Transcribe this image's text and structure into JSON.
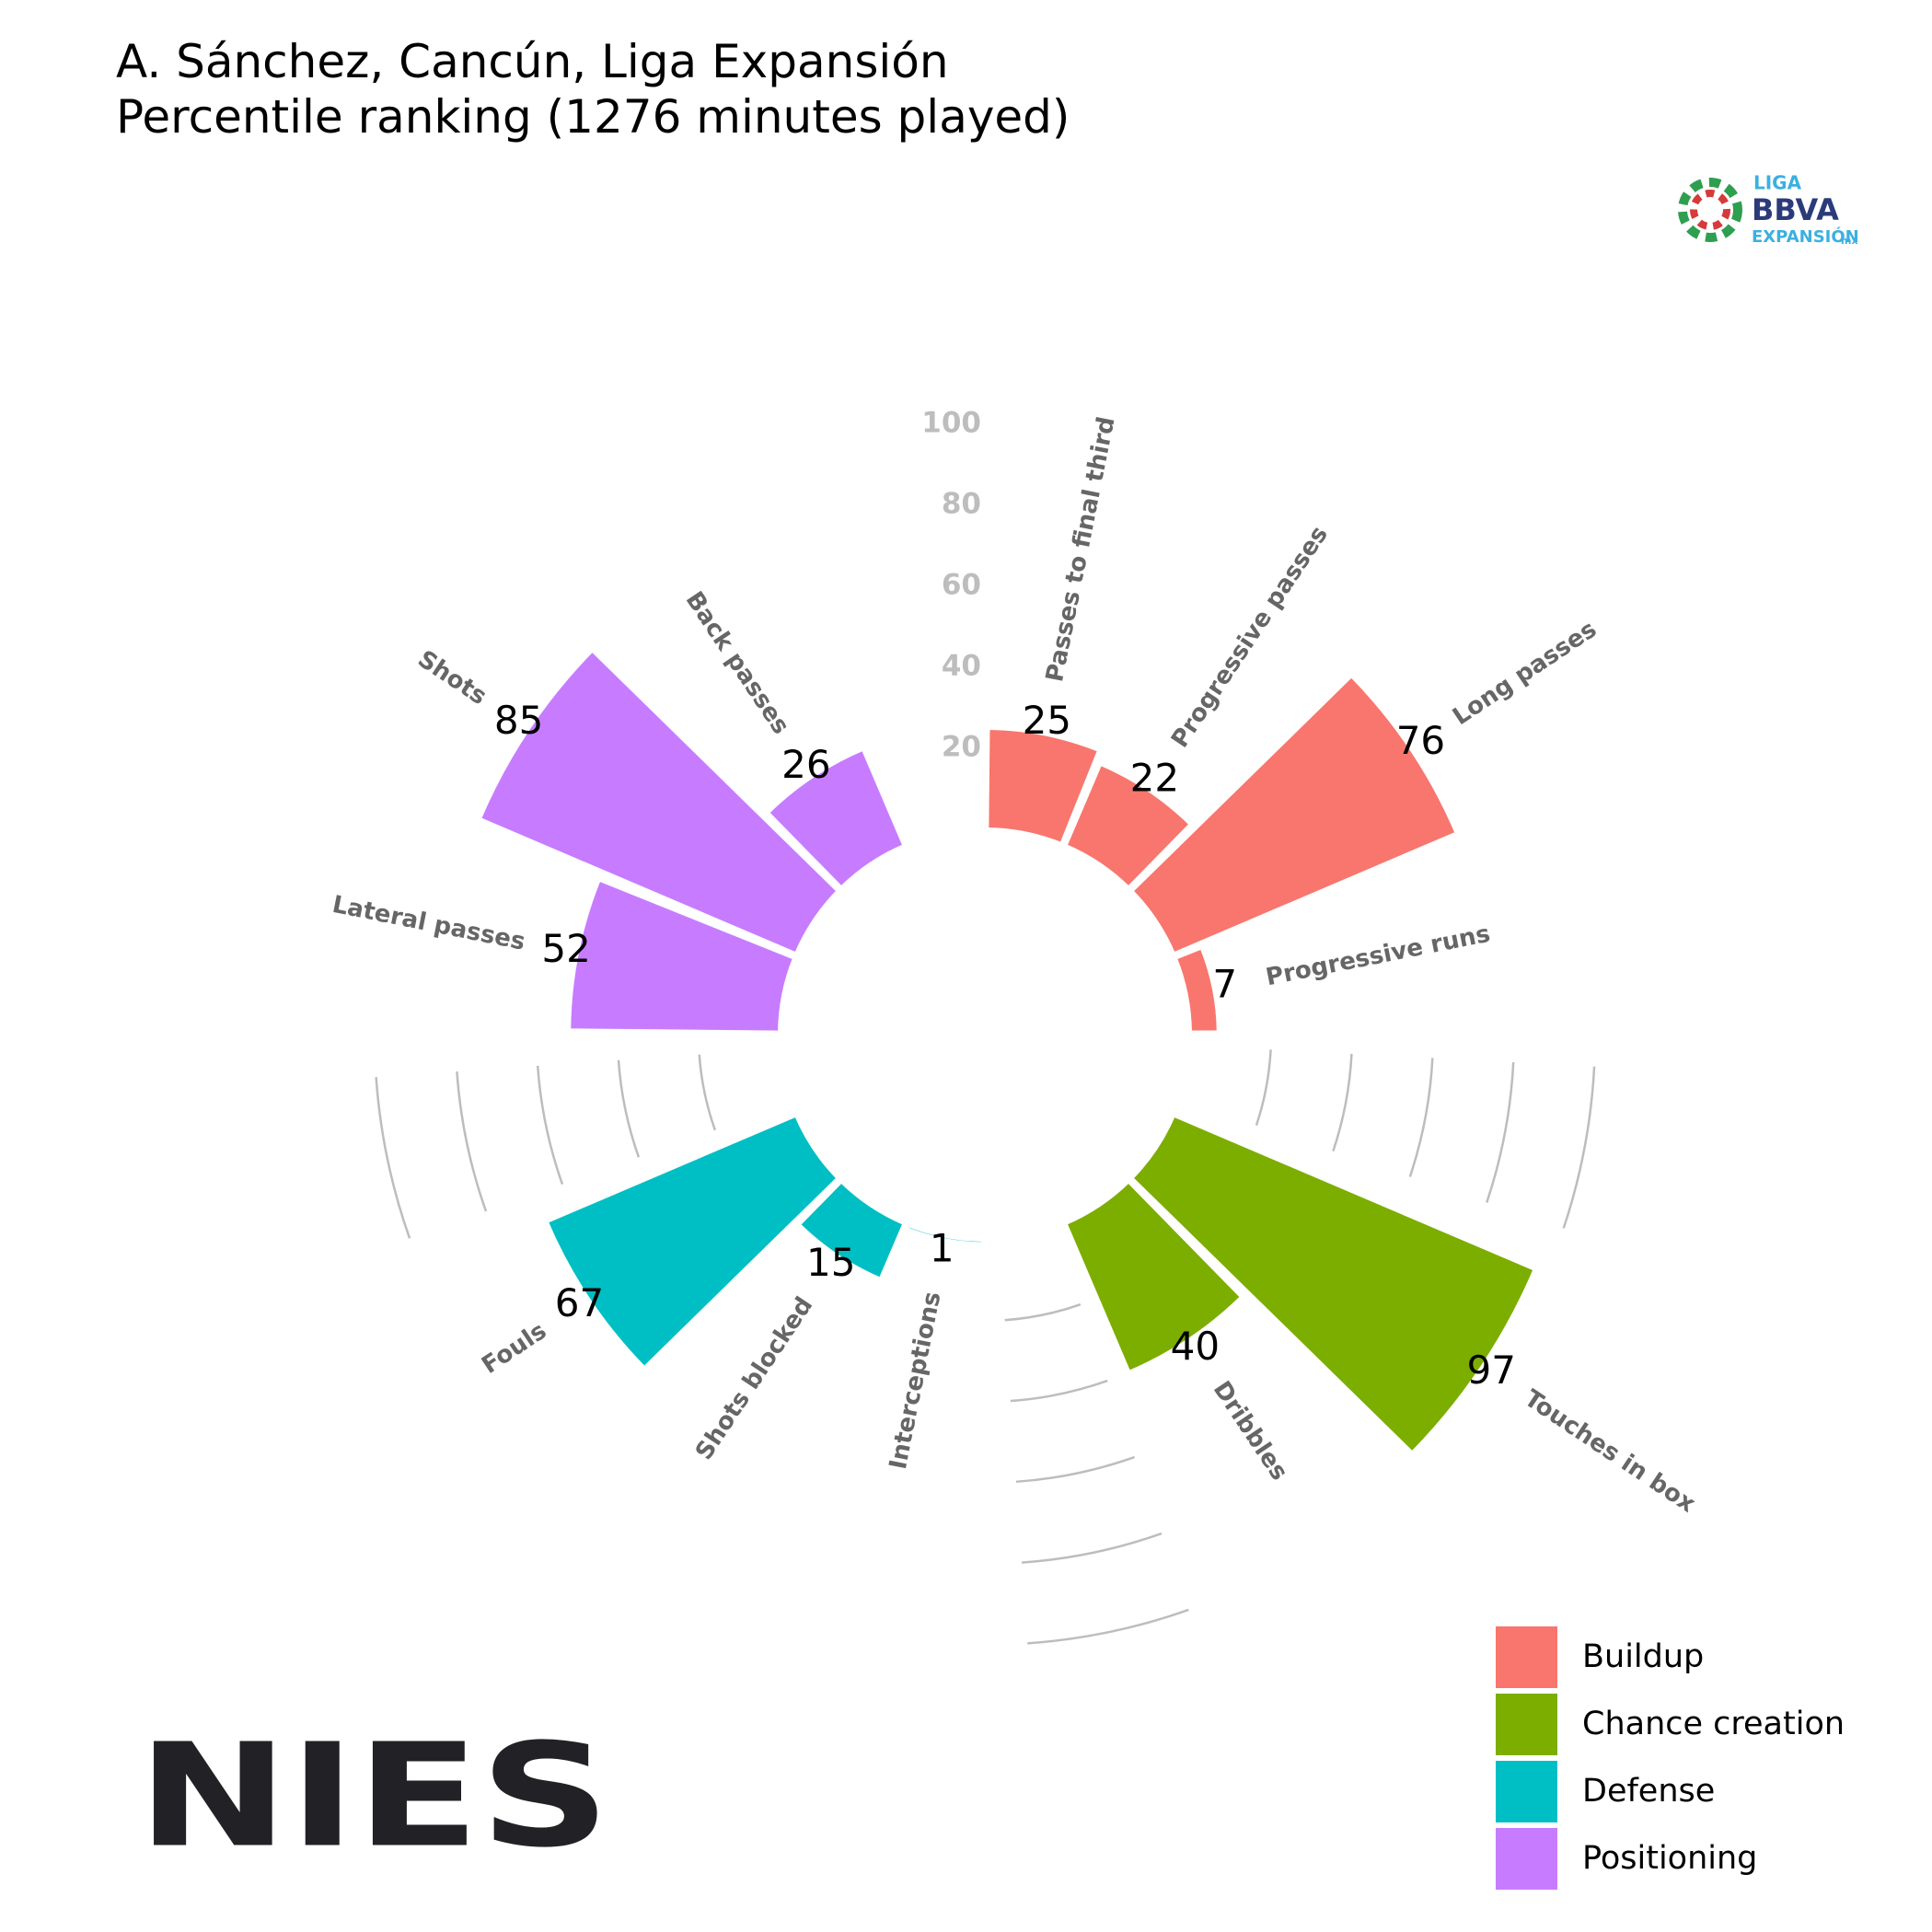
{
  "chart_data": {
    "type": "polar_bar",
    "title": "A. Sánchez, Cancún, Liga Expansión",
    "subtitle": "Percentile ranking (1276 minutes played)",
    "ylim": [
      0,
      100
    ],
    "yticks": [
      20,
      40,
      60,
      80,
      100
    ],
    "series": [
      {
        "name": "Buildup",
        "color": "#F8766D",
        "categories": [
          "Passes to final third",
          "Progressive passes",
          "Long passes",
          "Progressive runs"
        ],
        "values": [
          25,
          22,
          76,
          7
        ]
      },
      {
        "name": "Chance creation",
        "color": "#7CAE00",
        "categories": [
          "Touches in box",
          "Dribbles"
        ],
        "values": [
          97,
          40
        ]
      },
      {
        "name": "Defense",
        "color": "#00BFC4",
        "categories": [
          "Interceptions",
          "Shots blocked",
          "Fouls"
        ],
        "values": [
          1,
          15,
          67
        ]
      },
      {
        "name": "Positioning",
        "color": "#C77CFF",
        "categories": [
          "Lateral passes",
          "Shots",
          "Back passes"
        ],
        "values": [
          52,
          85,
          26
        ]
      }
    ],
    "legend": "bottom-right"
  },
  "logos": {
    "main": "NIES",
    "league": [
      "LIGA",
      "BBVA",
      "EXPANSIÓN",
      "mx"
    ]
  }
}
